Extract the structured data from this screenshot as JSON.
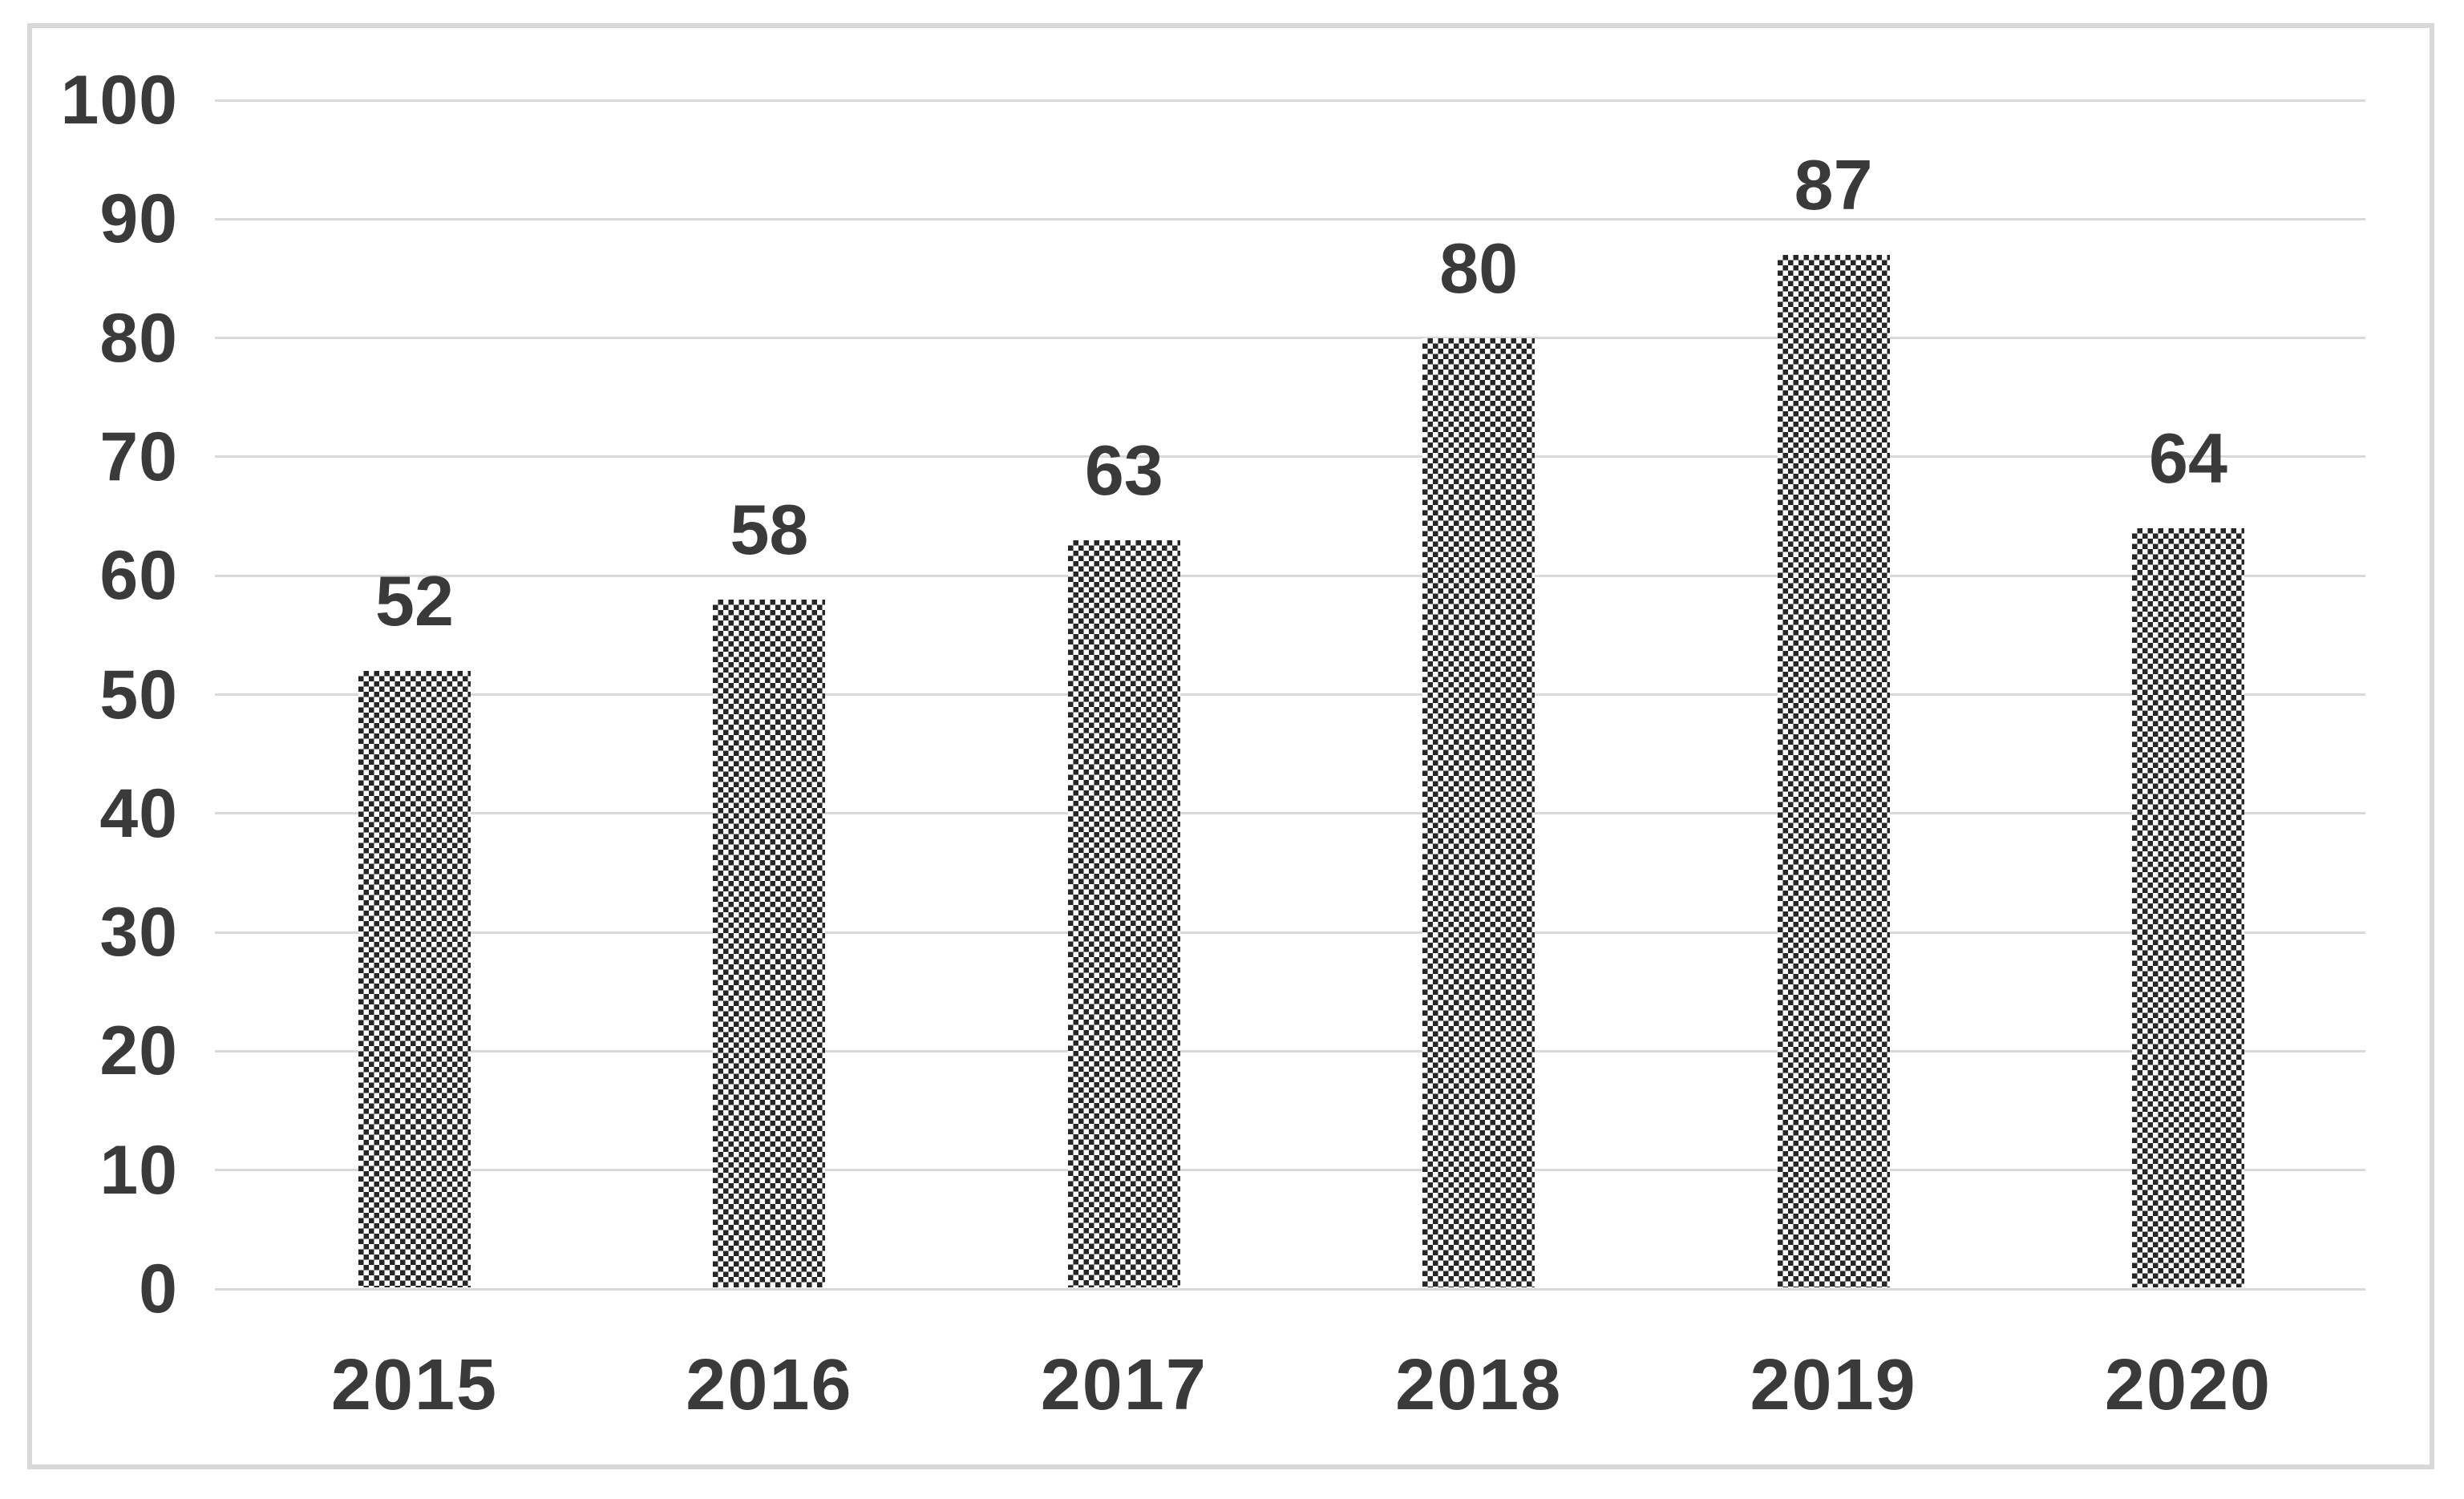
{
  "chart_data": {
    "type": "bar",
    "title": "",
    "xlabel": "",
    "ylabel": "",
    "categories": [
      "2015",
      "2016",
      "2017",
      "2018",
      "2019",
      "2020"
    ],
    "values": [
      52,
      58,
      63,
      80,
      87,
      64
    ],
    "data_labels": [
      "52",
      "58",
      "63",
      "80",
      "87",
      "64"
    ],
    "ylim": [
      0,
      100
    ],
    "yticks": [
      0,
      10,
      20,
      30,
      40,
      50,
      60,
      70,
      80,
      90,
      100
    ],
    "grid": true,
    "legend": false,
    "bar_pattern": "checkerboard",
    "colors": {
      "bar_fill": "#262626",
      "bar_background": "#ffffff",
      "gridline": "#d9d9d9",
      "text": "#3a3a3a",
      "frame_border": "#d8d8d8",
      "background": "#ffffff"
    }
  }
}
